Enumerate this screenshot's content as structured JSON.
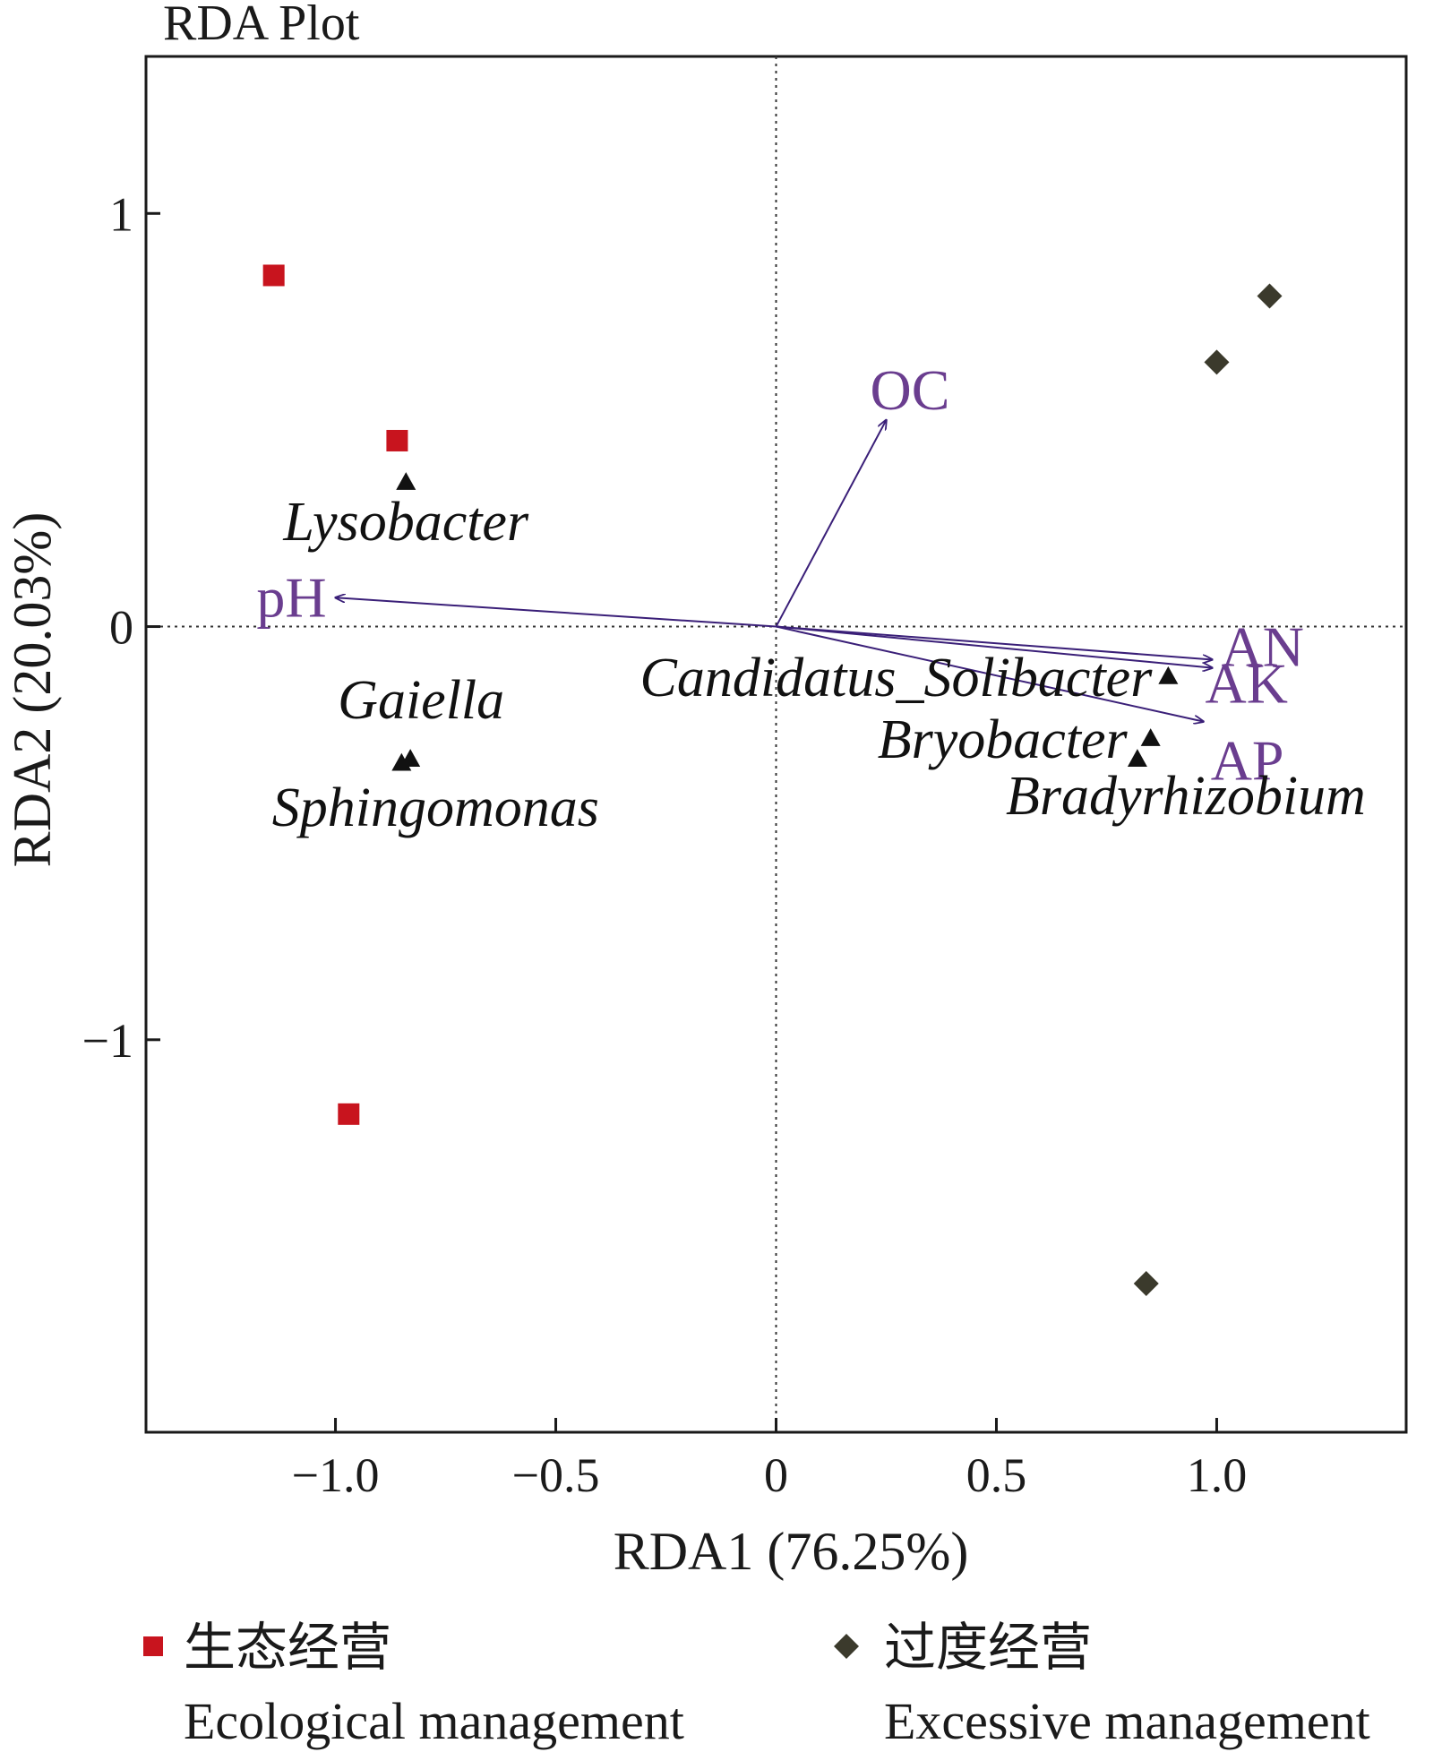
{
  "chart_data": {
    "type": "scatter",
    "title": "RDA Plot",
    "xlabel": "RDA1 (76.25%)",
    "ylabel": "RDA2 (20.03%)",
    "xlim": [
      -1.43,
      1.43
    ],
    "ylim": [
      -1.95,
      1.38
    ],
    "x_ticks": [
      {
        "value": -1.0,
        "label": "−1.0"
      },
      {
        "value": -0.5,
        "label": "−0.5"
      },
      {
        "value": 0,
        "label": "0"
      },
      {
        "value": 0.5,
        "label": "0.5"
      },
      {
        "value": 1.0,
        "label": "1.0"
      }
    ],
    "y_ticks": [
      {
        "value": 1,
        "label": "1"
      },
      {
        "value": 0,
        "label": "0"
      },
      {
        "value": -1,
        "label": "−1"
      }
    ],
    "reference_lines": {
      "x": 0,
      "y": 0,
      "style": "dotted"
    },
    "grid": false,
    "colors": {
      "ecological": "#c8141e",
      "excessive": "#3b3a2c",
      "arrow": "#3a1f78",
      "env_label": "#6a3d8f",
      "taxon": "#111111"
    },
    "sample_series": [
      {
        "key": "ecological",
        "marker": "square",
        "points": [
          [
            -1.14,
            0.85
          ],
          [
            -0.86,
            0.45
          ],
          [
            -0.97,
            -1.18
          ]
        ]
      },
      {
        "key": "excessive",
        "marker": "diamond",
        "points": [
          [
            1.12,
            0.8
          ],
          [
            1.0,
            0.64
          ],
          [
            0.84,
            -1.59
          ]
        ]
      }
    ],
    "environmental_vectors": [
      {
        "label": "OC",
        "x": 0.25,
        "y": 0.5
      },
      {
        "label": "pH",
        "x": -1.0,
        "y": 0.07
      },
      {
        "label": "AN",
        "x": 0.99,
        "y": -0.08
      },
      {
        "label": "AK",
        "x": 0.99,
        "y": -0.1
      },
      {
        "label": "AP",
        "x": 0.97,
        "y": -0.23
      }
    ],
    "taxa": [
      {
        "label": "Lysobacter",
        "x": -0.84,
        "y": 0.35
      },
      {
        "label": "Gaiella",
        "x": -0.83,
        "y": -0.32
      },
      {
        "label": "Sphingomonas",
        "x": -0.85,
        "y": -0.33
      },
      {
        "label": "Candidatus_Solibacter",
        "x": 0.89,
        "y": -0.12
      },
      {
        "label": "Bryobacter",
        "x": 0.85,
        "y": -0.27
      },
      {
        "label": "Bradyrhizobium",
        "x": 0.82,
        "y": -0.32
      }
    ],
    "legend": {
      "placement": "bottom",
      "entries": [
        {
          "key": "ecological",
          "marker": "square",
          "label_cn": "生态经营",
          "label_en": "Ecological management"
        },
        {
          "key": "excessive",
          "marker": "diamond",
          "label_cn": "过度经营",
          "label_en": "Excessive management"
        }
      ]
    }
  }
}
